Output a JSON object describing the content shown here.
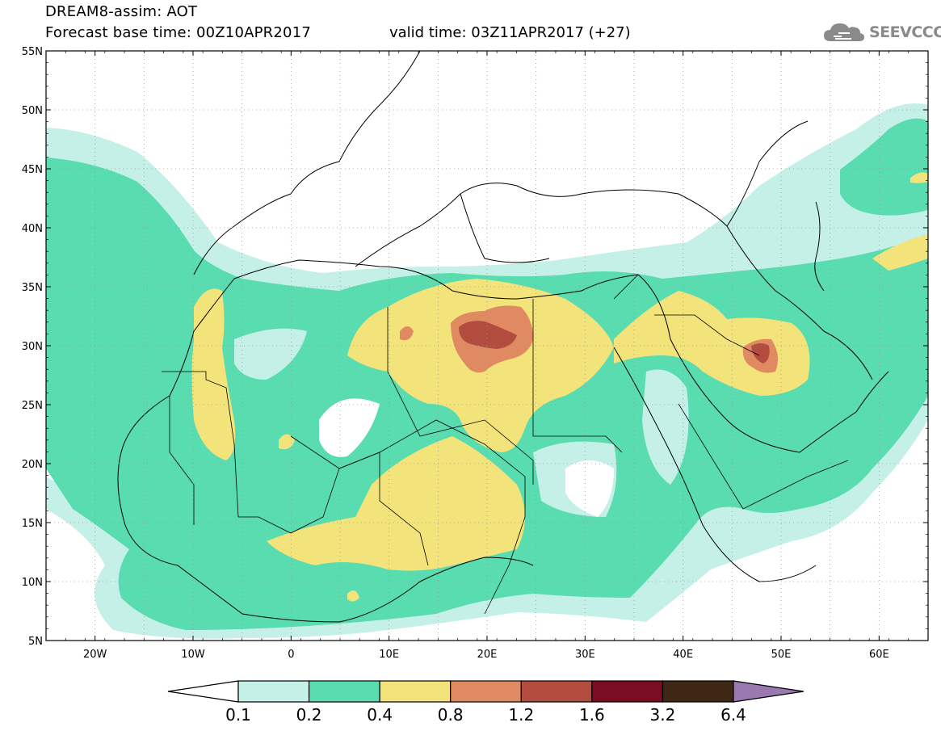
{
  "header": {
    "title": "DREAM8-assim: AOT",
    "base_time": "Forecast base time: 00Z10APR2017",
    "valid_time": "valid time: 03Z11APR2017 (+27)",
    "logo_text": "SEEVCCC",
    "logo_icon": "cloud-icon"
  },
  "map": {
    "lon_range": [
      -25,
      65
    ],
    "lat_range": [
      5,
      55
    ],
    "lat_ticks": [
      "55N",
      "50N",
      "45N",
      "40N",
      "35N",
      "30N",
      "25N",
      "20N",
      "15N",
      "10N",
      "5N"
    ],
    "lon_ticks": [
      "20W",
      "10W",
      "0",
      "10E",
      "20E",
      "30E",
      "40E",
      "50E",
      "60E"
    ],
    "grid": "dotted"
  },
  "colorbar": {
    "labels": [
      "0.1",
      "0.2",
      "0.4",
      "0.8",
      "1.2",
      "1.6",
      "3.2",
      "6.4"
    ],
    "colors": [
      "#ffffff",
      "#c5f0e8",
      "#58dcb0",
      "#f2e37a",
      "#e08a62",
      "#b14c3e",
      "#7a0d22",
      "#3e2714",
      "#9a78b0"
    ]
  }
}
